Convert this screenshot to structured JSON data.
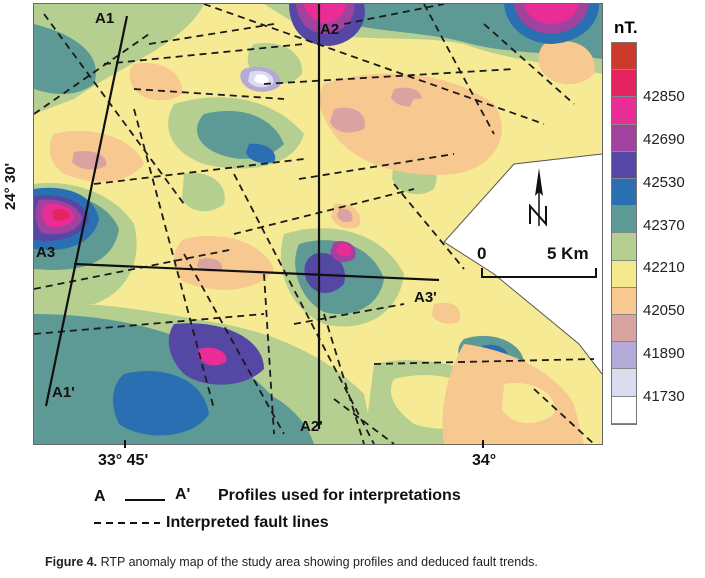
{
  "map": {
    "profiles": [
      {
        "start": "A1",
        "end": "A1'"
      },
      {
        "start": "A2",
        "end": "A2'"
      },
      {
        "start": "A3",
        "end": "A3'"
      }
    ],
    "latitude_label": "24° 30'",
    "longitude_labels": [
      "33° 45'",
      "34°"
    ],
    "scale": {
      "start": "0",
      "end": "5 Km"
    },
    "north_label": "N"
  },
  "legend": {
    "unit": "nT.",
    "values": [
      "42850",
      "42690",
      "42530",
      "42370",
      "42210",
      "42050",
      "41890",
      "41730"
    ],
    "colors": [
      "#cc3a2e",
      "#e3245f",
      "#ea2d96",
      "#a1429e",
      "#5548a5",
      "#2b6fb3",
      "#5e9a95",
      "#b5cf90",
      "#f5e98e",
      "#f7c88f",
      "#d9a3a1",
      "#b3aad8",
      "#dcdcf0",
      "#ffffff"
    ]
  },
  "bottom_legend": {
    "profile_symbol_start": "A",
    "profile_symbol_end": "A'",
    "profile_text": "Profiles used for interpretations",
    "fault_text": "Interpreted fault lines"
  },
  "caption": {
    "label": "Figure 4.",
    "text": " RTP anomaly map of the study area showing profiles and deduced fault trends."
  }
}
